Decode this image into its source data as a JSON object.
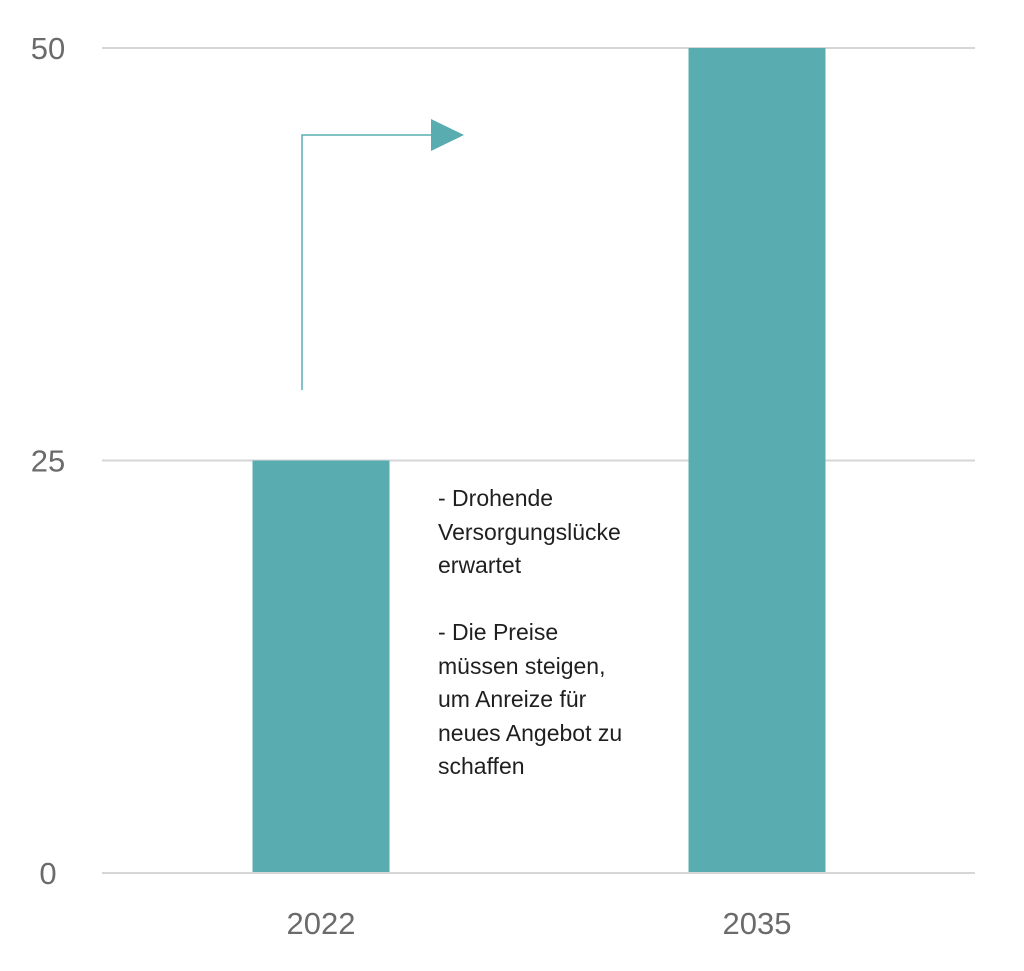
{
  "chart_data": {
    "type": "bar",
    "categories": [
      "2022",
      "2035"
    ],
    "values": [
      25,
      50
    ],
    "yticks": [
      0,
      25,
      50
    ],
    "ylim": [
      0,
      50
    ],
    "grid": "horizontal",
    "bar_color": "#59adb0",
    "annotations": [
      {
        "lines": [
          "- Drohende",
          "Versorgungslücke",
          "erwartet"
        ]
      },
      {
        "lines": [
          "- Die Preise",
          "müssen steigen,",
          "um Anreize für",
          "neues Angebot zu",
          "schaffen"
        ]
      }
    ],
    "arrow_color": "#59adb0"
  }
}
